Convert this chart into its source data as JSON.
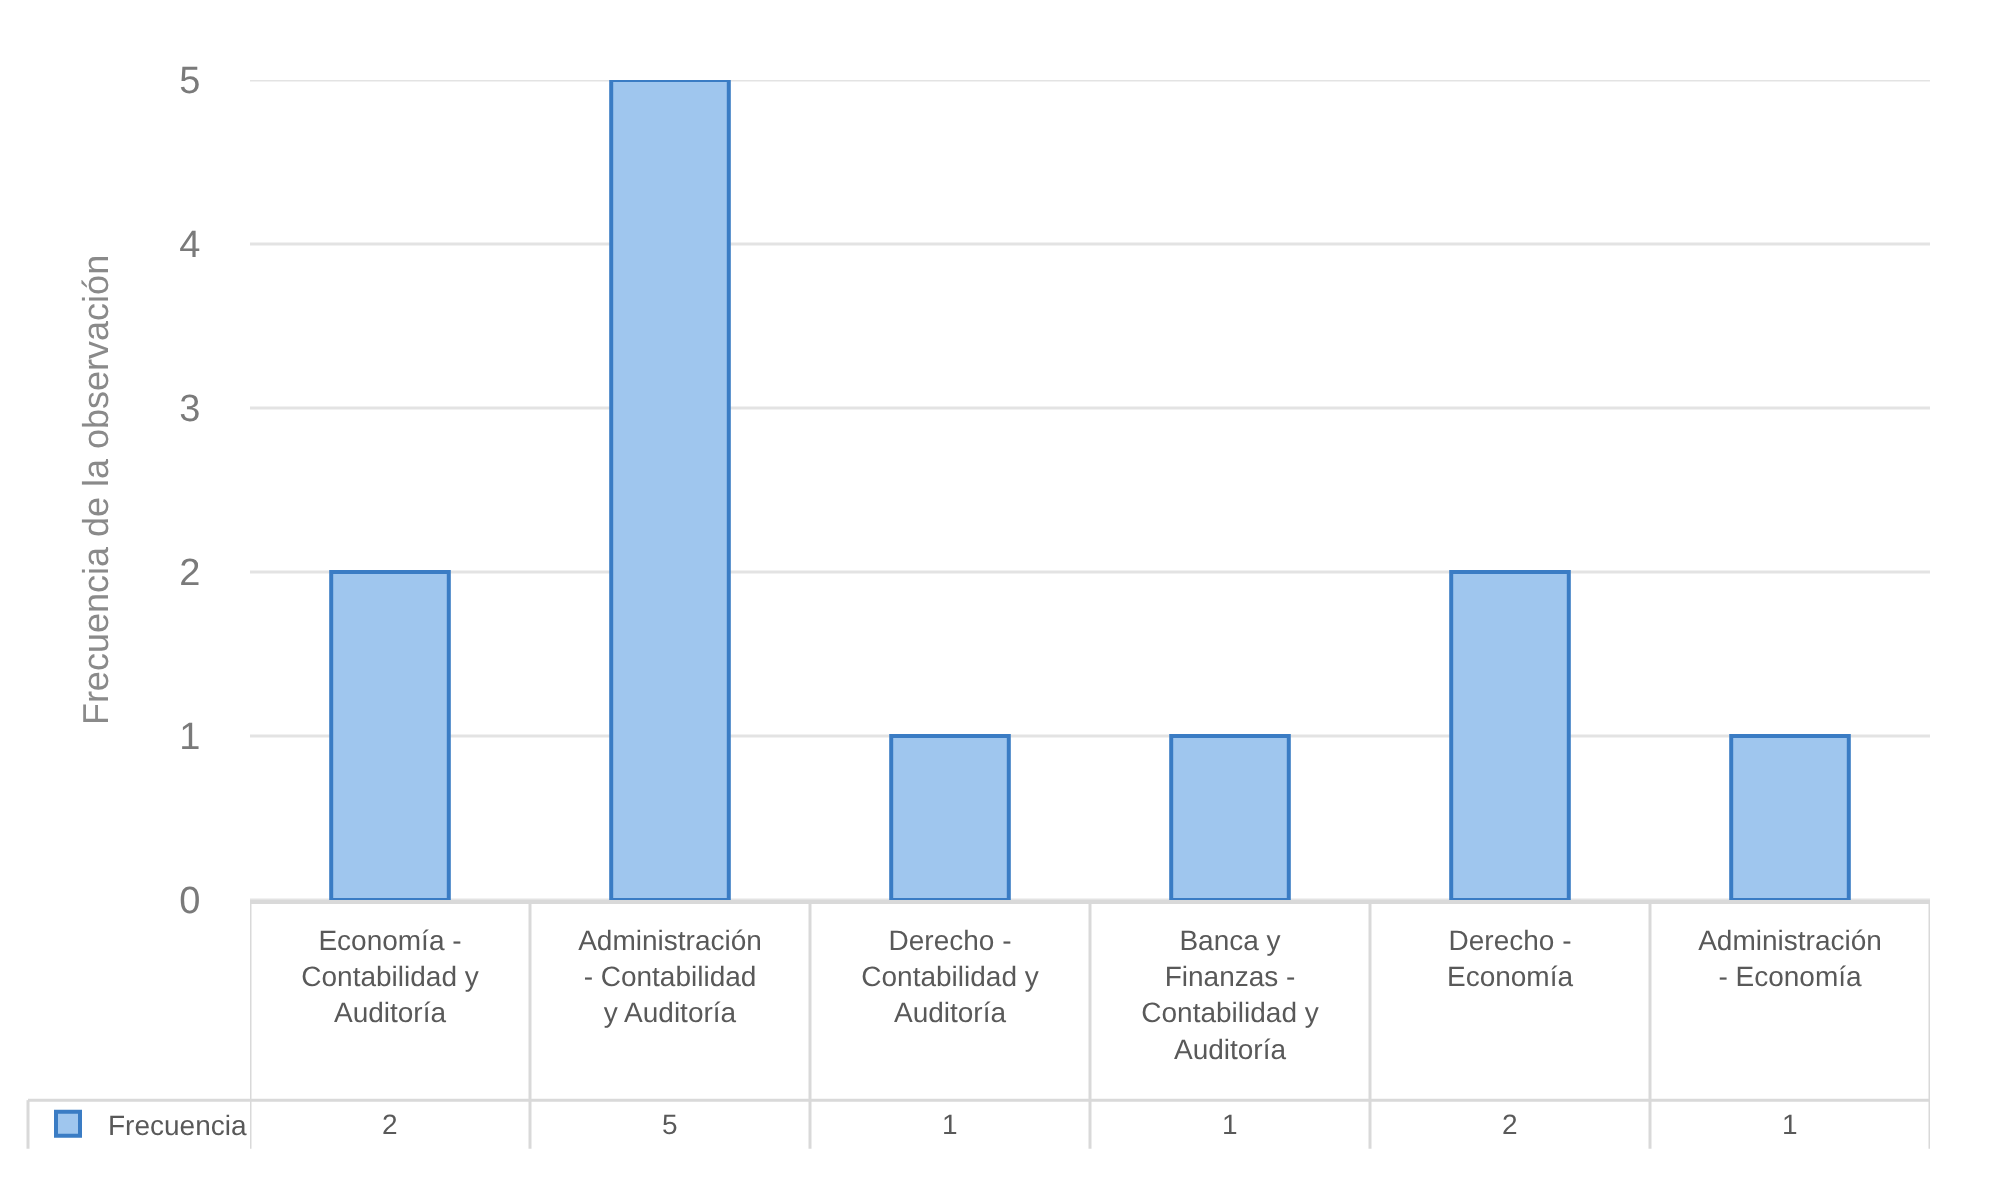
{
  "chart_data": {
    "type": "bar",
    "ylabel": "Frecuencia de la observación",
    "categories": [
      "Economía - Contabilidad y Auditoría",
      "Administración - Contabilidad y Auditoría",
      "Derecho - Contabilidad y Auditoría",
      "Banca y Finanzas - Contabilidad y Auditoría",
      "Derecho - Economía",
      "Administración - Economía"
    ],
    "series": [
      {
        "name": "Frecuencia",
        "color": "#9fc6ee",
        "values": [
          2,
          5,
          1,
          1,
          2,
          1
        ]
      }
    ],
    "ylim": [
      0,
      5
    ],
    "yticks": [
      0,
      1,
      2,
      3,
      4,
      5
    ],
    "grid": "y",
    "legend": "bottom left",
    "data_labels": true
  }
}
